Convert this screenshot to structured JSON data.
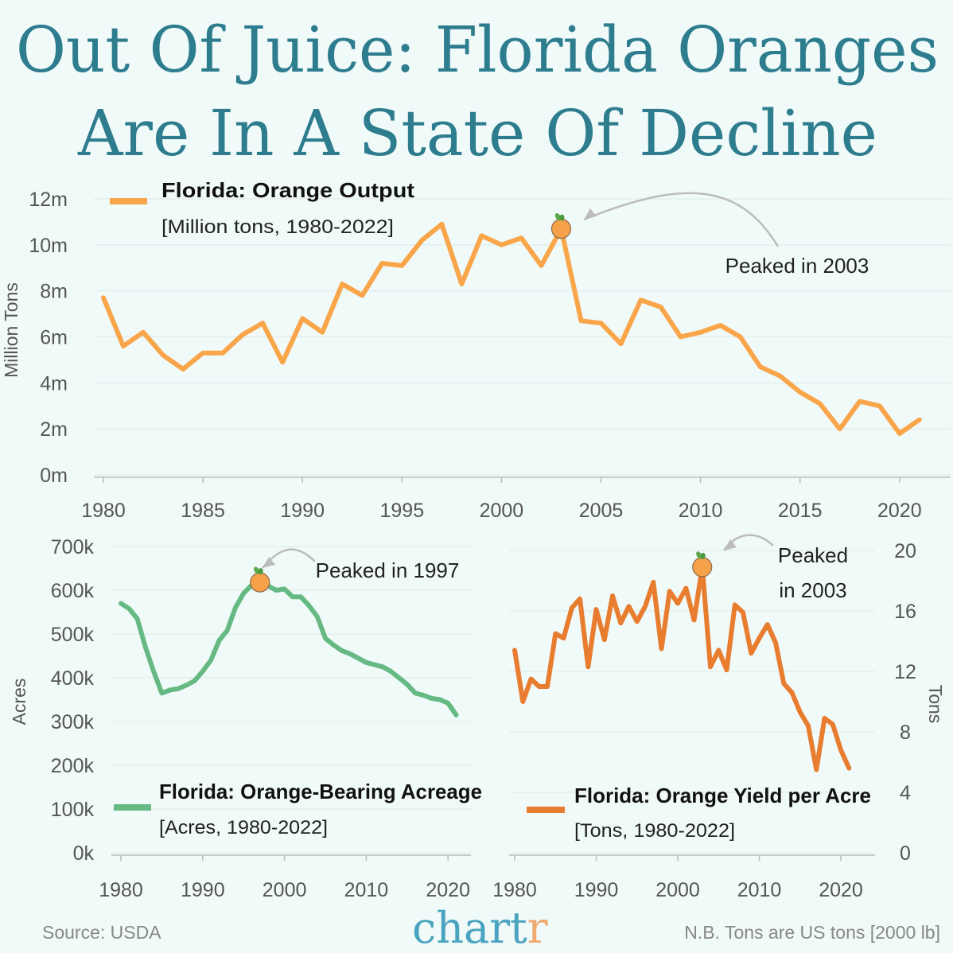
{
  "title": {
    "line1": "Out Of Juice: Florida Oranges",
    "line2": "Are In A State Of Decline"
  },
  "footer": {
    "source": "Source: USDA",
    "logo_main": "chart",
    "logo_accent": "r",
    "note": "N.B. Tons are US tons [2000 lb]"
  },
  "colors": {
    "background": "#f0faf9",
    "title": "#2e7d8f",
    "output": "#f9a54a",
    "acreage": "#66b982",
    "yield": "#e87c2f",
    "logo": "#4aa3bf",
    "logo_accent": "#f0a96e",
    "marker": "#f7a24a"
  },
  "chart_data": [
    {
      "type": "line",
      "legend_title": "Florida: Orange Output",
      "legend_sub": "[Million tons, 1980-2022]",
      "ylabel": "Million Tons",
      "ylim": [
        0,
        12
      ],
      "yticks": [
        "0m",
        "2m",
        "4m",
        "6m",
        "8m",
        "10m",
        "12m"
      ],
      "xticks": [
        "1980",
        "1985",
        "1990",
        "1995",
        "2000",
        "2005",
        "2010",
        "2015",
        "2020"
      ],
      "annotation": "Peaked in 2003",
      "peak_year": 2003,
      "grid": true,
      "x": [
        1980,
        1981,
        1982,
        1983,
        1984,
        1985,
        1986,
        1987,
        1988,
        1989,
        1990,
        1991,
        1992,
        1993,
        1994,
        1995,
        1996,
        1997,
        1998,
        1999,
        2000,
        2001,
        2002,
        2003,
        2004,
        2005,
        2006,
        2007,
        2008,
        2009,
        2010,
        2011,
        2012,
        2013,
        2014,
        2015,
        2016,
        2017,
        2018,
        2019,
        2020,
        2021
      ],
      "values": [
        7.7,
        5.6,
        6.2,
        5.2,
        4.6,
        5.3,
        5.3,
        6.1,
        6.6,
        4.9,
        6.8,
        6.2,
        8.3,
        7.8,
        9.2,
        9.1,
        10.2,
        10.9,
        8.3,
        10.4,
        10.0,
        10.3,
        9.1,
        10.7,
        6.7,
        6.6,
        5.7,
        7.6,
        7.3,
        6.0,
        6.2,
        6.5,
        6.0,
        4.7,
        4.3,
        3.6,
        3.1,
        2.0,
        3.2,
        3.0,
        1.8,
        2.4
      ]
    },
    {
      "type": "line",
      "legend_title": "Florida: Orange-Bearing Acreage",
      "legend_sub": "[Acres, 1980-2022]",
      "ylabel": "Acres",
      "ylim": [
        0,
        700000
      ],
      "yticks": [
        "0k",
        "100k",
        "200k",
        "300k",
        "400k",
        "500k",
        "600k",
        "700k"
      ],
      "xticks": [
        "1980",
        "1990",
        "2000",
        "2010",
        "2020"
      ],
      "annotation": "Peaked in 1997",
      "peak_year": 1997,
      "grid": true,
      "x": [
        1980,
        1981,
        1982,
        1983,
        1984,
        1985,
        1986,
        1987,
        1988,
        1989,
        1990,
        1991,
        1992,
        1993,
        1994,
        1995,
        1996,
        1997,
        1998,
        1999,
        2000,
        2001,
        2002,
        2003,
        2004,
        2005,
        2006,
        2007,
        2008,
        2009,
        2010,
        2011,
        2012,
        2013,
        2014,
        2015,
        2016,
        2017,
        2018,
        2019,
        2020,
        2021
      ],
      "values": [
        570000,
        558000,
        535000,
        470000,
        415000,
        365000,
        372000,
        375000,
        383000,
        393000,
        415000,
        440000,
        485000,
        508000,
        560000,
        593000,
        612000,
        618000,
        610000,
        600000,
        603000,
        585000,
        585000,
        565000,
        540000,
        490000,
        475000,
        462000,
        455000,
        445000,
        435000,
        430000,
        425000,
        415000,
        400000,
        385000,
        365000,
        360000,
        353000,
        350000,
        342000,
        315000
      ]
    },
    {
      "type": "line",
      "legend_title": "Florida: Orange Yield per Acre",
      "legend_sub": "[Tons, 1980-2022]",
      "ylabel": "Tons",
      "ylim": [
        0,
        20
      ],
      "yticks": [
        "0",
        "4",
        "8",
        "12",
        "16",
        "20"
      ],
      "xticks": [
        "1980",
        "1990",
        "2000",
        "2010",
        "2020"
      ],
      "annotation_line1": "Peaked",
      "annotation_line2": "in 2003",
      "peak_year": 2003,
      "grid": true,
      "x": [
        1980,
        1981,
        1982,
        1983,
        1984,
        1985,
        1986,
        1987,
        1988,
        1989,
        1990,
        1991,
        1992,
        1993,
        1994,
        1995,
        1996,
        1997,
        1998,
        1999,
        2000,
        2001,
        2002,
        2003,
        2004,
        2005,
        2006,
        2007,
        2008,
        2009,
        2010,
        2011,
        2012,
        2013,
        2014,
        2015,
        2016,
        2017,
        2018,
        2019,
        2020,
        2021
      ],
      "values": [
        13.4,
        10.0,
        11.5,
        11.0,
        11.0,
        14.5,
        14.2,
        16.2,
        16.8,
        12.3,
        16.1,
        14.1,
        17.0,
        15.2,
        16.3,
        15.3,
        16.3,
        17.9,
        13.5,
        17.3,
        16.5,
        17.5,
        15.4,
        18.9,
        12.3,
        13.4,
        12.1,
        16.4,
        15.9,
        13.2,
        14.2,
        15.1,
        13.9,
        11.2,
        10.6,
        9.3,
        8.4,
        5.5,
        8.9,
        8.5,
        6.8,
        5.6
      ]
    }
  ]
}
